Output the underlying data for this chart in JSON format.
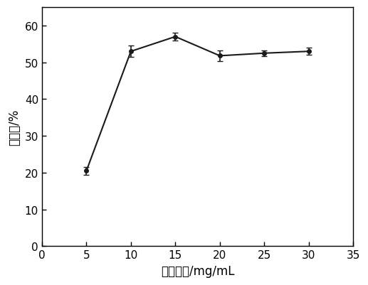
{
  "x": [
    5,
    10,
    15,
    20,
    25,
    30
  ],
  "y": [
    20.5,
    53.0,
    57.0,
    51.8,
    52.5,
    53.0
  ],
  "yerr": [
    1.0,
    1.5,
    1.0,
    1.5,
    0.8,
    1.0
  ],
  "xlabel": "多糖浓度/mg/mL",
  "ylabel": "抑制率/%",
  "xlim": [
    0,
    35
  ],
  "ylim": [
    0,
    65
  ],
  "xticks": [
    0,
    5,
    10,
    15,
    20,
    25,
    30,
    35
  ],
  "yticks": [
    0,
    10,
    20,
    30,
    40,
    50,
    60
  ],
  "line_color": "#1a1a1a",
  "marker": "o",
  "markersize": 4,
  "linewidth": 1.5,
  "capsize": 3,
  "elinewidth": 1.2,
  "background_color": "#ffffff",
  "tick_fontsize": 11,
  "label_fontsize": 12
}
